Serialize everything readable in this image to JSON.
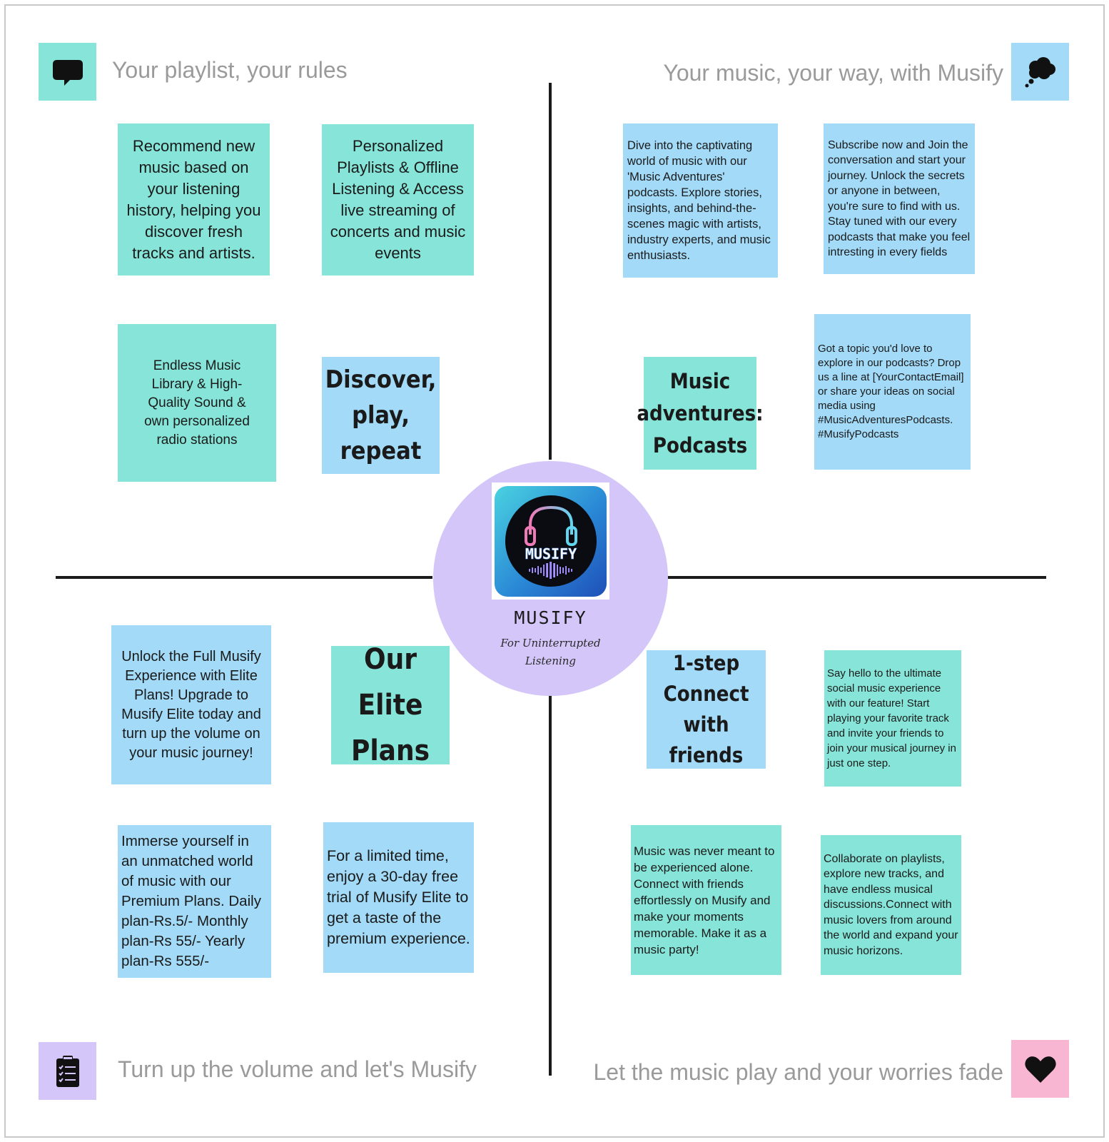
{
  "headings": {
    "top_left": "Your playlist, your rules",
    "top_right": "Your music, your way, with Musify",
    "bottom_left": "Turn up the volume and let's Musify",
    "bottom_right": "Let the music play and your worries fade"
  },
  "center": {
    "logo_text": "MUSIFY",
    "title": "MUSIFY",
    "subtitle": "For Uninterrupted Listening"
  },
  "notes": {
    "recommend": "Recommend new music based on your listening history, helping you discover fresh tracks and artists.",
    "personalized": "Personalized Playlists & Offline Listening & Access live streaming of concerts and music events",
    "endless": "Endless Music Library & High-Quality Sound & own personalized radio stations",
    "discover": "Discover, play, repeat",
    "dive": "Dive into the captivating world of music with our 'Music Adventures' podcasts.  Explore stories, insights, and behind-the-scenes magic with artists, industry experts, and music enthusiasts.",
    "subscribe": "Subscribe now and  Join the conversation and start your journey. Unlock the secrets or anyone in between, you're sure to find with us. Stay tuned with our every podcasts that make you feel intresting in every fields",
    "podcasts_title": "Music adventures: Podcasts",
    "topic": "Got a topic you'd love to explore in our podcasts? Drop us a line at [YourContactEmail] or share your ideas on social media using #MusicAdventuresPodcasts. #MusifyPodcasts",
    "unlock": "Unlock the Full Musify Experience with Elite Plans! Upgrade to Musify Elite today and turn up the volume on your music journey!",
    "elite_title": "Our Elite Plans",
    "immerse": "Immerse yourself in an unmatched world of music with our Premium Plans. Daily plan-Rs.5/- Monthly plan-Rs 55/- Yearly plan-Rs 555/-",
    "trial": "For a limited time, enjoy a 30-day free trial of Musify Elite to get a taste of the premium experience.",
    "connect_title": "1-step Connect with friends",
    "say_hello": "Say hello to the ultimate social music experience with our feature! Start playing your favorite track and invite your friends to join your musical journey in just one step.",
    "never_alone": "Music was never meant to be experienced alone. Connect with friends effortlessly on Musify and make your moments memorable. Make it as a music party!",
    "collaborate": "Collaborate on playlists, explore new tracks, and have endless musical discussions.Connect with music lovers from around the world and expand your music horizons."
  },
  "icons": {
    "top_left": "speech-bubble-icon",
    "top_right": "thought-bubble-icon",
    "bottom_left": "clipboard-checklist-icon",
    "bottom_right": "heart-icon"
  },
  "colors": {
    "green_note": "#86e5d8",
    "blue_note": "#a2daf7",
    "lavender": "#d4c6f8",
    "pink": "#f8b6d3",
    "heading_gray": "#9a9a9a"
  }
}
